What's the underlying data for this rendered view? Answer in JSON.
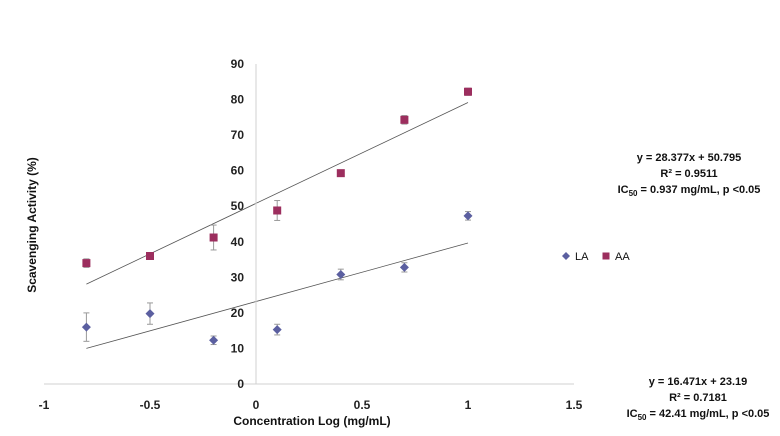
{
  "chart_data": {
    "type": "scatter",
    "xlabel": "Concentration Log (mg/mL)",
    "ylabel": "Scavenging Activity (%)",
    "xlim": [
      -1,
      1.5
    ],
    "ylim": [
      0,
      90
    ],
    "x_ticks": [
      -1,
      -0.5,
      0,
      0.5,
      1,
      1.5
    ],
    "y_ticks": [
      0,
      10,
      20,
      30,
      40,
      50,
      60,
      70,
      80,
      90
    ],
    "grid": false,
    "legend_position": "right",
    "series": [
      {
        "name": "LA",
        "marker": "diamond",
        "color": "#5b5fa0",
        "x": [
          -0.8,
          -0.5,
          -0.2,
          0.1,
          0.4,
          0.7,
          1.0
        ],
        "y": [
          16,
          19.8,
          12.3,
          15.3,
          30.8,
          32.8,
          47.3
        ],
        "error": [
          4,
          3,
          1.2,
          1.5,
          1.5,
          1.3,
          1.2
        ],
        "trendline": {
          "slope": 16.471,
          "intercept": 23.19,
          "x_range": [
            -0.8,
            1.0
          ]
        }
      },
      {
        "name": "AA",
        "marker": "square",
        "color": "#9c2e5e",
        "x": [
          -0.8,
          -0.5,
          -0.2,
          0.1,
          0.4,
          0.7,
          1.0
        ],
        "y": [
          34,
          36,
          41.2,
          48.8,
          59.3,
          74.3,
          82.2
        ],
        "error": [
          1.2,
          0.6,
          3.5,
          2.8,
          0.5,
          1.2,
          1
        ],
        "trendline": {
          "slope": 28.377,
          "intercept": 50.795,
          "x_range": [
            -0.8,
            1.0
          ]
        }
      }
    ],
    "annotations": [
      {
        "series": "AA",
        "equation": "y = 28.377x + 50.795",
        "r2": "R² = 0.9511",
        "ic_label": "IC",
        "ic_sub": "50",
        "ic_value": " = 0.937 mg/mL, p <0.05"
      },
      {
        "series": "LA",
        "equation": "y = 16.471x + 23.19",
        "r2": "R² = 0.7181",
        "ic_label": "IC",
        "ic_sub": "50",
        "ic_value": " = 42.41 mg/mL, p <0.05"
      }
    ]
  }
}
